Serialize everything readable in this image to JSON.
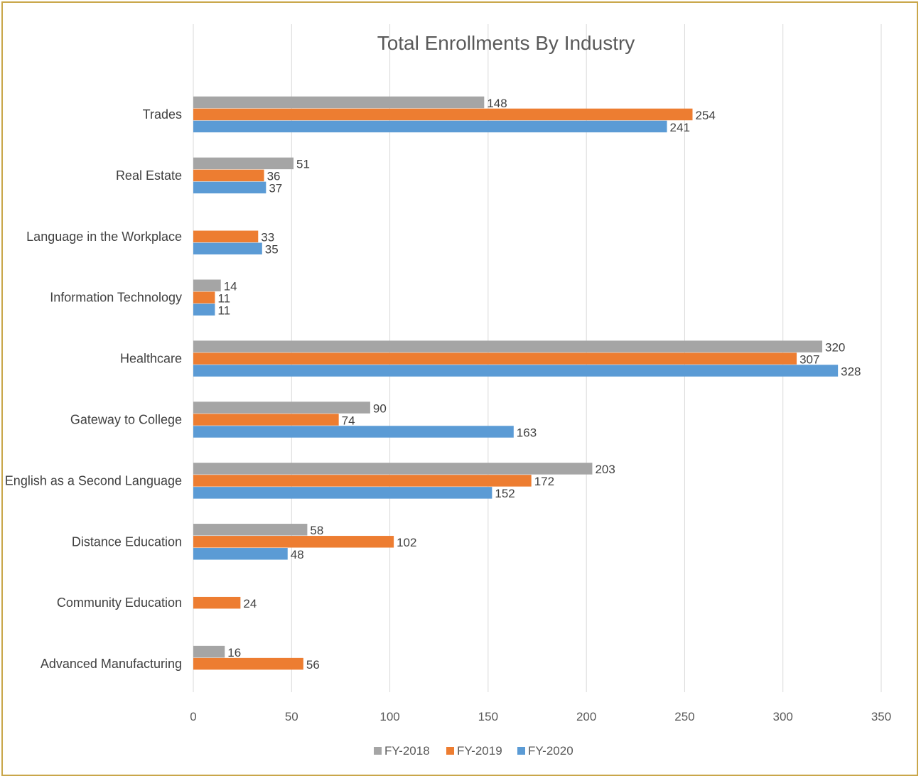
{
  "chart_data": {
    "type": "bar",
    "orientation": "horizontal",
    "title": "Total Enrollments By Industry",
    "xlabel": "",
    "ylabel": "",
    "xlim": [
      0,
      350
    ],
    "x_ticks": [
      0,
      50,
      100,
      150,
      200,
      250,
      300,
      350
    ],
    "grid": "vertical",
    "legend_position": "bottom",
    "categories": [
      "Trades",
      "Real Estate",
      "Language in the Workplace",
      "Information Technology",
      "Healthcare",
      "Gateway to College",
      "English as a Second Language",
      "Distance Education",
      "Community Education",
      "Advanced Manufacturing"
    ],
    "series": [
      {
        "name": "FY-2018",
        "color": "#a5a5a5",
        "values": [
          148,
          51,
          null,
          14,
          320,
          90,
          203,
          58,
          null,
          16
        ]
      },
      {
        "name": "FY-2019",
        "color": "#ed7d31",
        "values": [
          254,
          36,
          33,
          11,
          307,
          74,
          172,
          102,
          24,
          56
        ]
      },
      {
        "name": "FY-2020",
        "color": "#5b9bd5",
        "values": [
          241,
          37,
          35,
          11,
          328,
          163,
          152,
          48,
          null,
          null
        ]
      }
    ]
  },
  "colors": {
    "frame_border": "#c9a64a",
    "gridline": "#d9d9d9"
  }
}
